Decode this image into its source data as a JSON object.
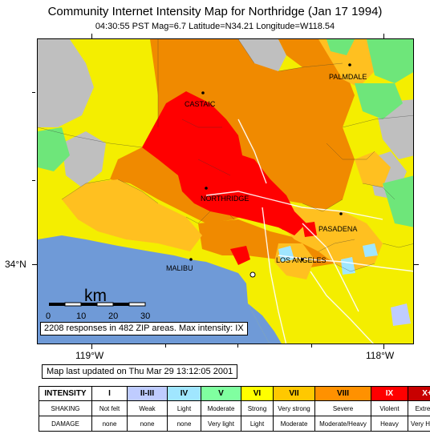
{
  "title": "Community Internet Intensity Map for Northridge (Jan 17 1994)",
  "subtitle": "04:30:55 PST Mag=6.7 Latitude=N34.21 Longitude=W118.54",
  "axes": {
    "lat_label": "34°N",
    "lon_labels": [
      "119°W",
      "118°W"
    ]
  },
  "places": {
    "palmdale": "PALMDALE",
    "castaic": "CASTAIC",
    "northridge": "NORTHRIDGE",
    "pasadena": "PASADENA",
    "malibu": "MALIBU",
    "los_angeles": "LOS ANGELES"
  },
  "scale_bar": {
    "unit": "km",
    "ticks": [
      "0",
      "10",
      "20",
      "30"
    ]
  },
  "responses_text": "2208 responses in 482 ZIP areas. Max intensity: IX",
  "updated_text": "Map last updated on Thu Mar 29 13:12:05 2001",
  "legend": {
    "headers": [
      "INTENSITY",
      "SHAKING",
      "DAMAGE"
    ],
    "levels": [
      {
        "intensity": "I",
        "shaking": "Not felt",
        "damage": "none",
        "color": "#ffffff"
      },
      {
        "intensity": "II-III",
        "shaking": "Weak",
        "damage": "none",
        "color": "#bfccff"
      },
      {
        "intensity": "IV",
        "shaking": "Light",
        "damage": "none",
        "color": "#a0e6ff"
      },
      {
        "intensity": "V",
        "shaking": "Moderate",
        "damage": "Very light",
        "color": "#80ffa0"
      },
      {
        "intensity": "VI",
        "shaking": "Strong",
        "damage": "Light",
        "color": "#ffff00"
      },
      {
        "intensity": "VII",
        "shaking": "Very strong",
        "damage": "Moderate",
        "color": "#ffc800"
      },
      {
        "intensity": "VIII",
        "shaking": "Severe",
        "damage": "Moderate/Heavy",
        "color": "#ff9100"
      },
      {
        "intensity": "IX",
        "shaking": "Violent",
        "damage": "Heavy",
        "color": "#ff0000"
      },
      {
        "intensity": "X+",
        "shaking": "Extreme",
        "damage": "Very Heavy",
        "color": "#c80000"
      }
    ]
  },
  "colors": {
    "ocean": "#6f9ad7",
    "no_data": "#bfbfbf",
    "intensity_v": "#6ee67a",
    "intensity_vi": "#f4ee00",
    "intensity_vii": "#ffc020",
    "intensity_viii": "#f08a00",
    "intensity_ix": "#ff0000"
  }
}
